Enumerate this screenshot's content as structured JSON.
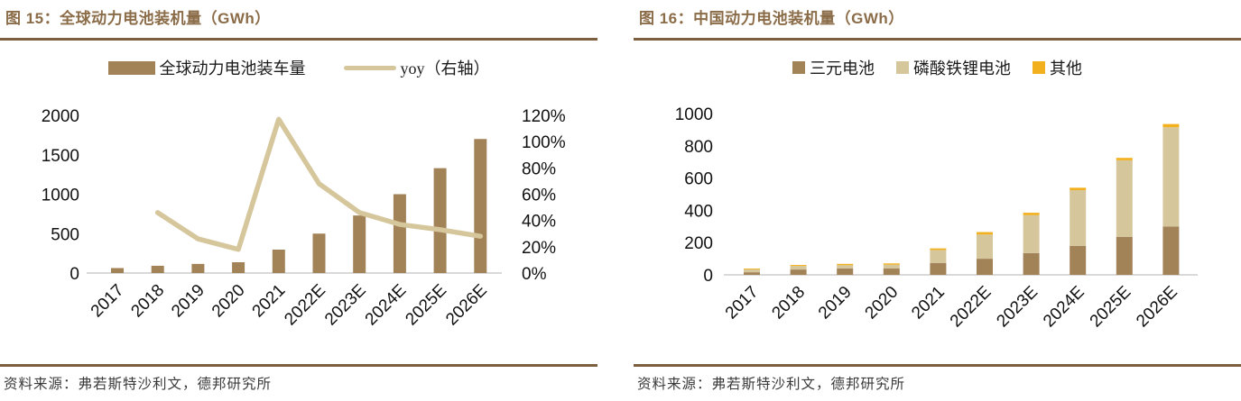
{
  "colors": {
    "bar_brown": "#A28257",
    "tan": "#D6C69C",
    "orange": "#F2B01E",
    "title_brown": "#8B6C48",
    "rule_brown": "#7C5F3E",
    "axis_line": "#D9D9D9",
    "tick_text": "#111111"
  },
  "panels": [
    {
      "title": "图 15：全球动力电池装机量（GWh）",
      "source": "资料来源：弗若斯特沙利文，德邦研究所",
      "legend": [
        {
          "label": "全球动力电池装车量",
          "swatch": "bar",
          "color_key": "bar_brown"
        },
        {
          "label": "yoy（右轴）",
          "swatch": "line",
          "color_key": "tan"
        }
      ],
      "chart_data": {
        "type": "bar+line",
        "title": "全球动力电池装机量（GWh）",
        "categories": [
          "2017",
          "2018",
          "2019",
          "2020",
          "2021",
          "2022E",
          "2023E",
          "2024E",
          "2025E",
          "2026E"
        ],
        "series": [
          {
            "name": "全球动力电池装车量",
            "type": "bar",
            "axis": "left",
            "color_key": "bar_brown",
            "values_gwh": [
              63,
              92,
              116,
              137,
              297,
              500,
              730,
              1000,
              1330,
              1700
            ]
          },
          {
            "name": "yoy（右轴）",
            "type": "line",
            "axis": "right",
            "color_key": "tan",
            "values_pct": [
              null,
              46,
              26,
              18,
              117,
              68,
              46,
              37,
              33,
              28
            ]
          }
        ],
        "left_axis": {
          "min": 0,
          "max": 2000,
          "tick_step": 500,
          "ticks": [
            0,
            500,
            1000,
            1500,
            2000
          ]
        },
        "right_axis": {
          "min_pct": 0,
          "max_pct": 120,
          "tick_step_pct": 20,
          "tick_labels": [
            "0%",
            "20%",
            "40%",
            "60%",
            "80%",
            "100%",
            "120%"
          ]
        },
        "grid": false,
        "legend_position": "top"
      }
    },
    {
      "title": "图 16：中国动力电池装机量（GWh）",
      "source": "资料来源：弗若斯特沙利文，德邦研究所",
      "legend": [
        {
          "label": "三元电池",
          "swatch": "square",
          "color_key": "bar_brown"
        },
        {
          "label": "磷酸铁锂电池",
          "swatch": "square",
          "color_key": "tan"
        },
        {
          "label": "其他",
          "swatch": "square",
          "color_key": "orange"
        }
      ],
      "chart_data": {
        "type": "stacked-bar",
        "title": "中国动力电池装机量（GWh）",
        "categories": [
          "2017",
          "2018",
          "2019",
          "2020",
          "2021",
          "2022E",
          "2023E",
          "2024E",
          "2025E",
          "2026E"
        ],
        "series": [
          {
            "name": "三元电池",
            "color_key": "bar_brown",
            "values_gwh": [
              16,
              33,
              40,
              39,
              74,
              100,
              135,
              180,
              235,
              300
            ]
          },
          {
            "name": "磷酸铁锂电池",
            "color_key": "tan",
            "values_gwh": [
              18,
              22,
              20,
              24,
              80,
              150,
              235,
              345,
              475,
              615
            ]
          },
          {
            "name": "其他",
            "color_key": "orange",
            "values_gwh": [
              5,
              6,
              8,
              8,
              10,
              15,
              15,
              15,
              15,
              20
            ]
          }
        ],
        "y_axis": {
          "min": 0,
          "max": 1000,
          "tick_step": 200,
          "ticks": [
            0,
            200,
            400,
            600,
            800,
            1000
          ]
        },
        "grid": false,
        "legend_position": "top"
      }
    }
  ]
}
